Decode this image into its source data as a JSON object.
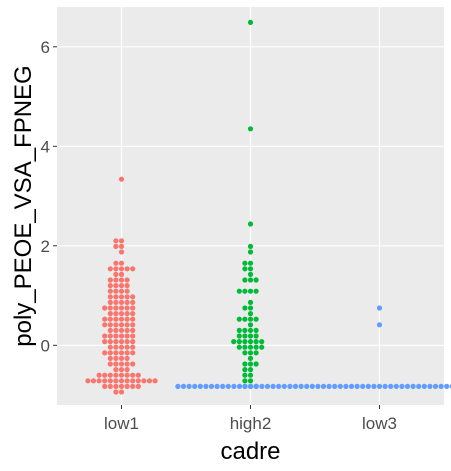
{
  "chart_data": {
    "type": "scatter",
    "subtype": "beeswarm",
    "title": "",
    "xlabel": "cadre",
    "ylabel": "poly_PEOE_VSA_FPNEG",
    "categories": [
      "low1",
      "high2",
      "low3"
    ],
    "ylim": [
      -1.2,
      6.8
    ],
    "yticks": [
      0,
      2,
      4,
      6
    ],
    "grid": true,
    "legend": "none",
    "panel_background": "#ebebeb",
    "colors": [
      "#f8766d",
      "#00ba38",
      "#619cff"
    ],
    "series": [
      {
        "category": "low1",
        "values": [
          3.33,
          2.15,
          2.13,
          1.97,
          1.95,
          1.85,
          1.62,
          1.6,
          1.58,
          1.56,
          1.55,
          1.53,
          1.5,
          1.4,
          1.38,
          1.35,
          1.32,
          1.3,
          1.28,
          1.25,
          1.2,
          1.18,
          1.15,
          1.12,
          1.1,
          1.08,
          1.05,
          1.02,
          1.0,
          0.98,
          0.95,
          0.92,
          0.9,
          0.88,
          0.86,
          0.84,
          0.82,
          0.8,
          0.78,
          0.76,
          0.74,
          0.72,
          0.7,
          0.68,
          0.66,
          0.64,
          0.62,
          0.6,
          0.58,
          0.56,
          0.54,
          0.52,
          0.5,
          0.48,
          0.46,
          0.44,
          0.42,
          0.4,
          0.38,
          0.36,
          0.34,
          0.32,
          0.3,
          0.28,
          0.26,
          0.24,
          0.22,
          0.2,
          0.18,
          0.16,
          0.14,
          0.12,
          0.1,
          0.08,
          0.06,
          0.04,
          0.02,
          0.0,
          -0.02,
          -0.04,
          -0.06,
          -0.08,
          -0.1,
          -0.12,
          -0.14,
          -0.16,
          -0.18,
          -0.2,
          -0.22,
          -0.25,
          -0.28,
          -0.3,
          -0.32,
          -0.35,
          -0.38,
          -0.4,
          -0.42,
          -0.45,
          -0.48,
          -0.52,
          -0.56,
          -0.6,
          -0.6,
          -0.62,
          -0.62,
          -0.64,
          -0.64,
          -0.65,
          -0.66,
          -0.66,
          -0.67,
          -0.68,
          -0.69,
          -0.7,
          -0.7,
          -0.71,
          -0.72,
          -0.73,
          -0.74,
          -0.75,
          -0.76,
          -0.77,
          -0.78,
          -0.8,
          -0.82,
          -0.84,
          -0.86,
          -0.88,
          -0.9,
          -0.92
        ]
      },
      {
        "category": "high2",
        "values": [
          6.45,
          4.33,
          2.42,
          1.97,
          1.82,
          1.62,
          1.6,
          1.58,
          1.56,
          1.38,
          1.35,
          1.33,
          1.3,
          1.12,
          1.1,
          1.08,
          1.06,
          0.82,
          0.8,
          0.78,
          0.6,
          0.58,
          0.56,
          0.54,
          0.52,
          0.36,
          0.34,
          0.32,
          0.3,
          0.28,
          0.2,
          0.18,
          0.16,
          0.14,
          0.12,
          0.1,
          0.08,
          0.06,
          0.04,
          0.02,
          0.0,
          -0.02,
          -0.04,
          -0.06,
          -0.08,
          -0.1,
          -0.12,
          -0.14,
          -0.3,
          -0.32,
          -0.36,
          -0.4,
          -0.45,
          -0.5,
          -0.56,
          -0.62,
          -0.68,
          -0.74,
          -0.8,
          -0.84,
          -0.86
        ]
      },
      {
        "category": "low3",
        "values": [
          0.7,
          0.38,
          -0.85,
          -0.85,
          -0.85,
          -0.85,
          -0.85,
          -0.85,
          -0.85,
          -0.85,
          -0.85,
          -0.85,
          -0.85,
          -0.85,
          -0.85,
          -0.85,
          -0.85,
          -0.85,
          -0.85,
          -0.85,
          -0.85,
          -0.85,
          -0.85,
          -0.85,
          -0.85,
          -0.85,
          -0.85,
          -0.85,
          -0.85,
          -0.85,
          -0.85,
          -0.85,
          -0.85,
          -0.85,
          -0.85,
          -0.85,
          -0.85,
          -0.85,
          -0.85,
          -0.85,
          -0.85,
          -0.85,
          -0.85,
          -0.85,
          -0.85,
          -0.85,
          -0.85,
          -0.85,
          -0.85,
          -0.85,
          -0.85,
          -0.85,
          -0.85,
          -0.85,
          -0.85,
          -0.85,
          -0.85,
          -0.85,
          -0.85,
          -0.85,
          -0.85,
          -0.85,
          -0.85,
          -0.85,
          -0.85,
          -0.85,
          -0.85,
          -0.85,
          -0.85,
          -0.85,
          -0.85,
          -0.85,
          -0.85,
          -0.85,
          -0.85
        ]
      }
    ]
  }
}
